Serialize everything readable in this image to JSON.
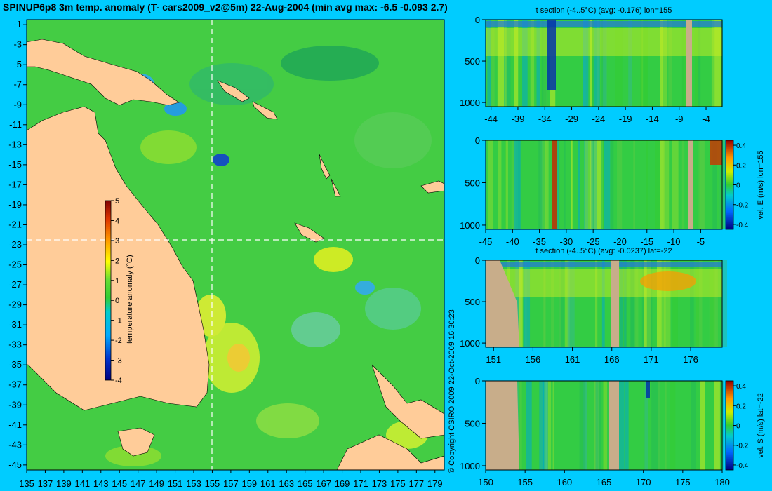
{
  "title": "SPINUP6p8 3m temp. anomaly (T- cars2009_v2@5m) 22-Aug-2004 (min avg max: -6.5 -0.093 2.7)",
  "copyright": "© Copyright CSIRO 2009   22-Oct-2009 16:30:23",
  "colors": {
    "background": "#00ccff",
    "land": "#ffcc99",
    "section_land": "#c8ad8a",
    "ocean_mid": "#33cc33"
  },
  "chart_data": [
    {
      "id": "map",
      "type": "heatmap",
      "title": "SPINUP6p8 3m temp. anomaly (T- cars2009_v2@5m) 22-Aug-2004 (min avg max: -6.5 -0.093 2.7)",
      "xlabel": "",
      "ylabel": "",
      "x_ticks": [
        135,
        137,
        139,
        141,
        143,
        145,
        147,
        149,
        151,
        153,
        155,
        157,
        159,
        161,
        163,
        165,
        167,
        169,
        171,
        173,
        175,
        177,
        179
      ],
      "y_ticks": [
        -1,
        -3,
        -5,
        -7,
        -9,
        -11,
        -13,
        -15,
        -17,
        -19,
        -21,
        -23,
        -25,
        -27,
        -29,
        -31,
        -33,
        -35,
        -37,
        -39,
        -41,
        -43,
        -45
      ],
      "xlim": [
        135,
        180
      ],
      "ylim": [
        -45,
        0
      ],
      "crosshair": {
        "lon": 155,
        "lat": -22
      },
      "colorbar": {
        "label": "temperature anomaly (°C)",
        "ticks": [
          5,
          4,
          3,
          2,
          1,
          0,
          -1,
          -2,
          -3,
          -4
        ],
        "range": [
          -4,
          5
        ]
      }
    },
    {
      "id": "t-section-lon",
      "type": "heatmap",
      "title": "t section (-4..5°C) (avg: -0.176) lon=155",
      "x_ticks": [
        -44,
        -39,
        -34,
        -29,
        -24,
        -19,
        -14,
        -9,
        -4
      ],
      "y_ticks": [
        0,
        500,
        1000
      ],
      "xlim": [
        -45,
        -1
      ],
      "ylim": [
        1050,
        0
      ],
      "colorbar": null
    },
    {
      "id": "vel-e-section",
      "type": "heatmap",
      "title": "",
      "x_ticks": [
        -45,
        -40,
        -35,
        -30,
        -25,
        -20,
        -15,
        -10,
        -5
      ],
      "y_ticks": [
        0,
        500,
        1000
      ],
      "xlim": [
        -45,
        -1
      ],
      "ylim": [
        1050,
        0
      ],
      "colorbar": {
        "label": "vel. E (m/s) lon=155",
        "ticks": [
          0.4,
          0.2,
          0,
          -0.2,
          -0.4
        ],
        "range": [
          -0.45,
          0.45
        ]
      }
    },
    {
      "id": "t-section-lat",
      "type": "heatmap",
      "title": "t section (-4..5°C) (avg: -0.0237) lat=-22",
      "x_ticks": [
        151,
        156,
        161,
        166,
        171,
        176
      ],
      "y_ticks": [
        0,
        500,
        1000
      ],
      "xlim": [
        150,
        180
      ],
      "ylim": [
        1050,
        0
      ],
      "colorbar": null
    },
    {
      "id": "vel-s-section",
      "type": "heatmap",
      "title": "",
      "x_ticks": [
        150,
        155,
        160,
        165,
        170,
        175,
        180
      ],
      "y_ticks": [
        0,
        500,
        1000
      ],
      "xlim": [
        150,
        180
      ],
      "ylim": [
        1050,
        0
      ],
      "colorbar": {
        "label": "vel. S (m/s) lat=-22",
        "ticks": [
          0.4,
          0.2,
          0,
          -0.2,
          -0.4
        ],
        "range": [
          -0.45,
          0.45
        ]
      }
    }
  ]
}
